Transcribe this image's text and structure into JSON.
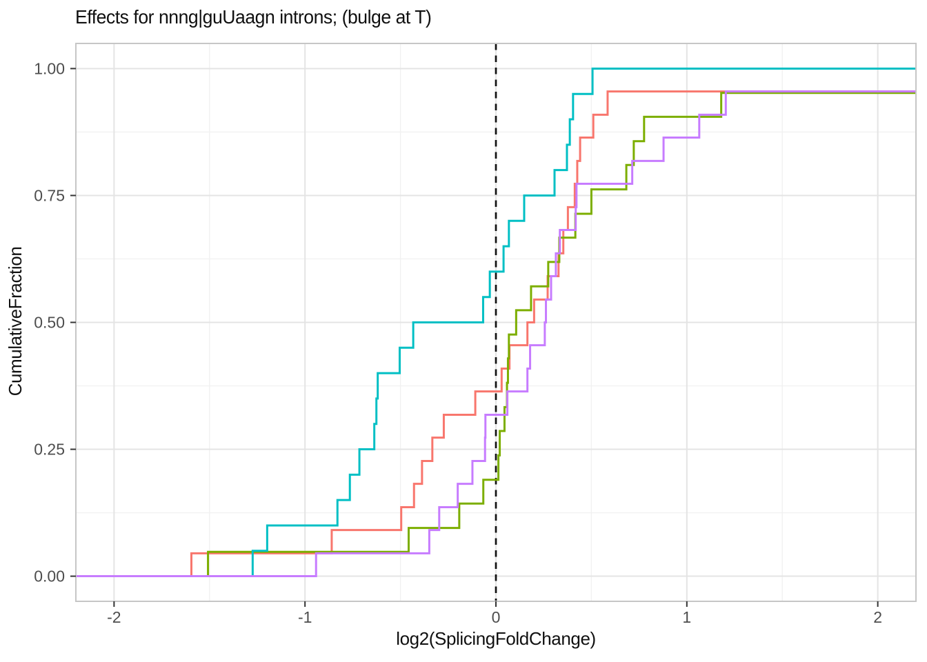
{
  "title": "Effects for nnng|guUaagn introns; (bulge at T)",
  "chart_data": {
    "type": "line",
    "variant": "ecdf-step",
    "title": "Effects for nnng|guUaagn introns; (bulge at T)",
    "xlabel": "log2(SplicingFoldChange)",
    "ylabel": "CumulativeFraction",
    "xlim": [
      -2.2,
      2.2
    ],
    "ylim": [
      -0.0495,
      1.0495
    ],
    "grid": true,
    "legend": "none",
    "x_ticks": {
      "labels": [
        "-2",
        "-1",
        "0",
        "1",
        "2"
      ],
      "values": [
        -2,
        -1,
        0,
        1,
        2
      ]
    },
    "y_ticks": {
      "labels": [
        "0.00",
        "0.25",
        "0.50",
        "0.75",
        "1.00"
      ],
      "values": [
        0,
        0.25,
        0.5,
        0.75,
        1
      ]
    },
    "x_minor": [
      -1.5,
      -0.5,
      0.5,
      1.5
    ],
    "y_minor": [
      0.125,
      0.375,
      0.625,
      0.875
    ],
    "vline": {
      "x": 0,
      "style": "dashed",
      "color": "#111111"
    },
    "colors": {
      "salmon": "#F8766D",
      "olive": "#7CAE00",
      "teal": "#00BFC4",
      "lavender": "#C77CFF",
      "grid_major": "#E4E4E4",
      "grid_minor": "#F1F1F1",
      "panel_border": "#C6C6C6",
      "tick_text": "#4D4D4D",
      "tick_mark": "#333333"
    },
    "series": [
      {
        "name": "salmon",
        "color": "#F8766D",
        "start_y": 0,
        "points": [
          [
            -1.595,
            0.045
          ],
          [
            -0.86,
            0.091
          ],
          [
            -0.496,
            0.136
          ],
          [
            -0.429,
            0.182
          ],
          [
            -0.387,
            0.227
          ],
          [
            -0.333,
            0.273
          ],
          [
            -0.273,
            0.318
          ],
          [
            -0.108,
            0.364
          ],
          [
            0.03,
            0.409
          ],
          [
            0.071,
            0.455
          ],
          [
            0.165,
            0.5
          ],
          [
            0.2,
            0.545
          ],
          [
            0.271,
            0.591
          ],
          [
            0.328,
            0.636
          ],
          [
            0.353,
            0.682
          ],
          [
            0.377,
            0.727
          ],
          [
            0.413,
            0.773
          ],
          [
            0.426,
            0.818
          ],
          [
            0.441,
            0.864
          ],
          [
            0.51,
            0.909
          ],
          [
            0.585,
            0.955
          ]
        ]
      },
      {
        "name": "olive",
        "color": "#7CAE00",
        "start_y": 0,
        "points": [
          [
            -1.508,
            0.048
          ],
          [
            -0.457,
            0.095
          ],
          [
            -0.192,
            0.143
          ],
          [
            -0.066,
            0.19
          ],
          [
            0.013,
            0.238
          ],
          [
            0.02,
            0.286
          ],
          [
            0.045,
            0.333
          ],
          [
            0.058,
            0.381
          ],
          [
            0.063,
            0.429
          ],
          [
            0.068,
            0.476
          ],
          [
            0.106,
            0.524
          ],
          [
            0.184,
            0.571
          ],
          [
            0.274,
            0.619
          ],
          [
            0.332,
            0.667
          ],
          [
            0.416,
            0.714
          ],
          [
            0.5,
            0.762
          ],
          [
            0.683,
            0.81
          ],
          [
            0.722,
            0.857
          ],
          [
            0.776,
            0.905
          ],
          [
            1.18,
            0.952
          ]
        ]
      },
      {
        "name": "teal",
        "color": "#00BFC4",
        "start_y": 0,
        "points": [
          [
            -1.274,
            0.05
          ],
          [
            -1.198,
            0.1
          ],
          [
            -0.83,
            0.15
          ],
          [
            -0.765,
            0.2
          ],
          [
            -0.715,
            0.25
          ],
          [
            -0.637,
            0.3
          ],
          [
            -0.626,
            0.35
          ],
          [
            -0.619,
            0.4
          ],
          [
            -0.504,
            0.45
          ],
          [
            -0.433,
            0.5
          ],
          [
            -0.067,
            0.55
          ],
          [
            -0.032,
            0.6
          ],
          [
            0.04,
            0.65
          ],
          [
            0.068,
            0.7
          ],
          [
            0.148,
            0.75
          ],
          [
            0.307,
            0.8
          ],
          [
            0.372,
            0.85
          ],
          [
            0.387,
            0.9
          ],
          [
            0.404,
            0.95
          ],
          [
            0.506,
            1.0
          ]
        ]
      },
      {
        "name": "lavender",
        "color": "#C77CFF",
        "start_y": 0,
        "points": [
          [
            -0.942,
            0.045
          ],
          [
            -0.349,
            0.091
          ],
          [
            -0.297,
            0.136
          ],
          [
            -0.2,
            0.182
          ],
          [
            -0.123,
            0.227
          ],
          [
            -0.057,
            0.273
          ],
          [
            -0.055,
            0.318
          ],
          [
            0.06,
            0.364
          ],
          [
            0.165,
            0.409
          ],
          [
            0.179,
            0.455
          ],
          [
            0.256,
            0.5
          ],
          [
            0.262,
            0.545
          ],
          [
            0.289,
            0.591
          ],
          [
            0.314,
            0.636
          ],
          [
            0.335,
            0.682
          ],
          [
            0.418,
            0.727
          ],
          [
            0.422,
            0.773
          ],
          [
            0.714,
            0.818
          ],
          [
            0.878,
            0.864
          ],
          [
            1.065,
            0.909
          ],
          [
            1.204,
            0.955
          ]
        ]
      }
    ]
  }
}
